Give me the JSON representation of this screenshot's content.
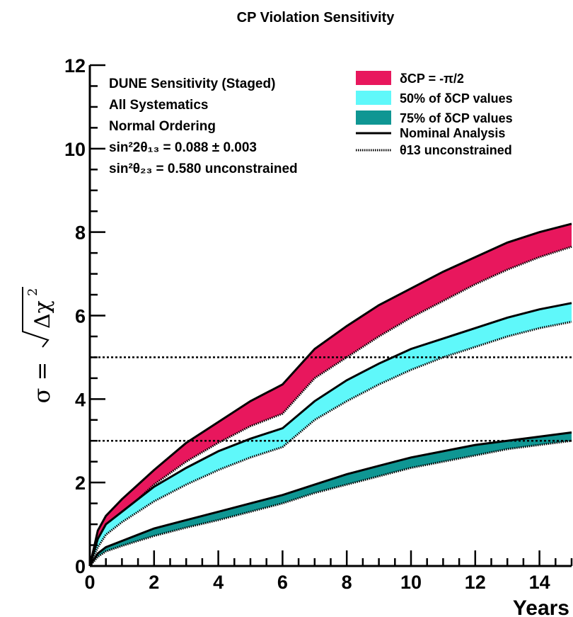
{
  "chart_data": {
    "type": "area",
    "title": "CP Violation Sensitivity",
    "xlabel": "Years",
    "ylabel": "σ = √Δχ²",
    "xlim": [
      0,
      15
    ],
    "ylim": [
      0,
      12
    ],
    "x_ticks": [
      "0",
      "2",
      "4",
      "6",
      "8",
      "10",
      "12",
      "14"
    ],
    "y_ticks": [
      "0",
      "2",
      "4",
      "6",
      "8",
      "10",
      "12"
    ],
    "grid": false,
    "legend_position": "top-right",
    "annotation_lines": [
      "DUNE Sensitivity (Staged)",
      "All Systematics",
      "Normal Ordering",
      "sin²2θ₁₃ = 0.088 ± 0.003",
      "sin²θ₂₃ = 0.580 unconstrained"
    ],
    "reference_lines": [
      {
        "y": 5,
        "style": "dotted"
      },
      {
        "y": 3,
        "style": "dotted"
      }
    ],
    "x": [
      0,
      0.25,
      0.5,
      1,
      1.5,
      2,
      3,
      4,
      5,
      6,
      7,
      8,
      9,
      10,
      11,
      12,
      13,
      14,
      15
    ],
    "series": [
      {
        "name": "δCP = -π/2",
        "color": "#e8175d",
        "upper": [
          0,
          0.85,
          1.2,
          1.6,
          1.95,
          2.3,
          2.95,
          3.45,
          3.95,
          4.35,
          5.2,
          5.75,
          6.25,
          6.65,
          7.05,
          7.4,
          7.75,
          8.0,
          8.2
        ],
        "lower": [
          0,
          0.6,
          0.9,
          1.25,
          1.6,
          1.95,
          2.5,
          2.95,
          3.35,
          3.65,
          4.5,
          5.0,
          5.5,
          5.95,
          6.35,
          6.75,
          7.1,
          7.4,
          7.65
        ]
      },
      {
        "name": "50% of δCP values",
        "color": "#5ff8fa",
        "upper": [
          0,
          0.65,
          1.0,
          1.3,
          1.6,
          1.9,
          2.35,
          2.75,
          3.05,
          3.3,
          3.95,
          4.45,
          4.85,
          5.2,
          5.45,
          5.7,
          5.95,
          6.15,
          6.3
        ],
        "lower": [
          0,
          0.45,
          0.75,
          1.05,
          1.3,
          1.55,
          1.95,
          2.3,
          2.6,
          2.85,
          3.5,
          3.95,
          4.35,
          4.7,
          5.0,
          5.25,
          5.5,
          5.7,
          5.85
        ]
      },
      {
        "name": "75% of δCP values",
        "color": "#0f9693",
        "upper": [
          0,
          0.3,
          0.45,
          0.6,
          0.75,
          0.9,
          1.1,
          1.3,
          1.5,
          1.7,
          1.95,
          2.2,
          2.4,
          2.6,
          2.75,
          2.9,
          3.0,
          3.1,
          3.2
        ],
        "lower": [
          0,
          0.22,
          0.35,
          0.48,
          0.6,
          0.72,
          0.92,
          1.1,
          1.3,
          1.5,
          1.75,
          1.95,
          2.15,
          2.35,
          2.5,
          2.65,
          2.8,
          2.9,
          3.0
        ]
      }
    ],
    "line_styles": [
      {
        "name": "Nominal Analysis",
        "style": "solid",
        "color": "#000000"
      },
      {
        "name": "θ13 unconstrained",
        "style": "dotted",
        "color": "#000000"
      }
    ]
  }
}
